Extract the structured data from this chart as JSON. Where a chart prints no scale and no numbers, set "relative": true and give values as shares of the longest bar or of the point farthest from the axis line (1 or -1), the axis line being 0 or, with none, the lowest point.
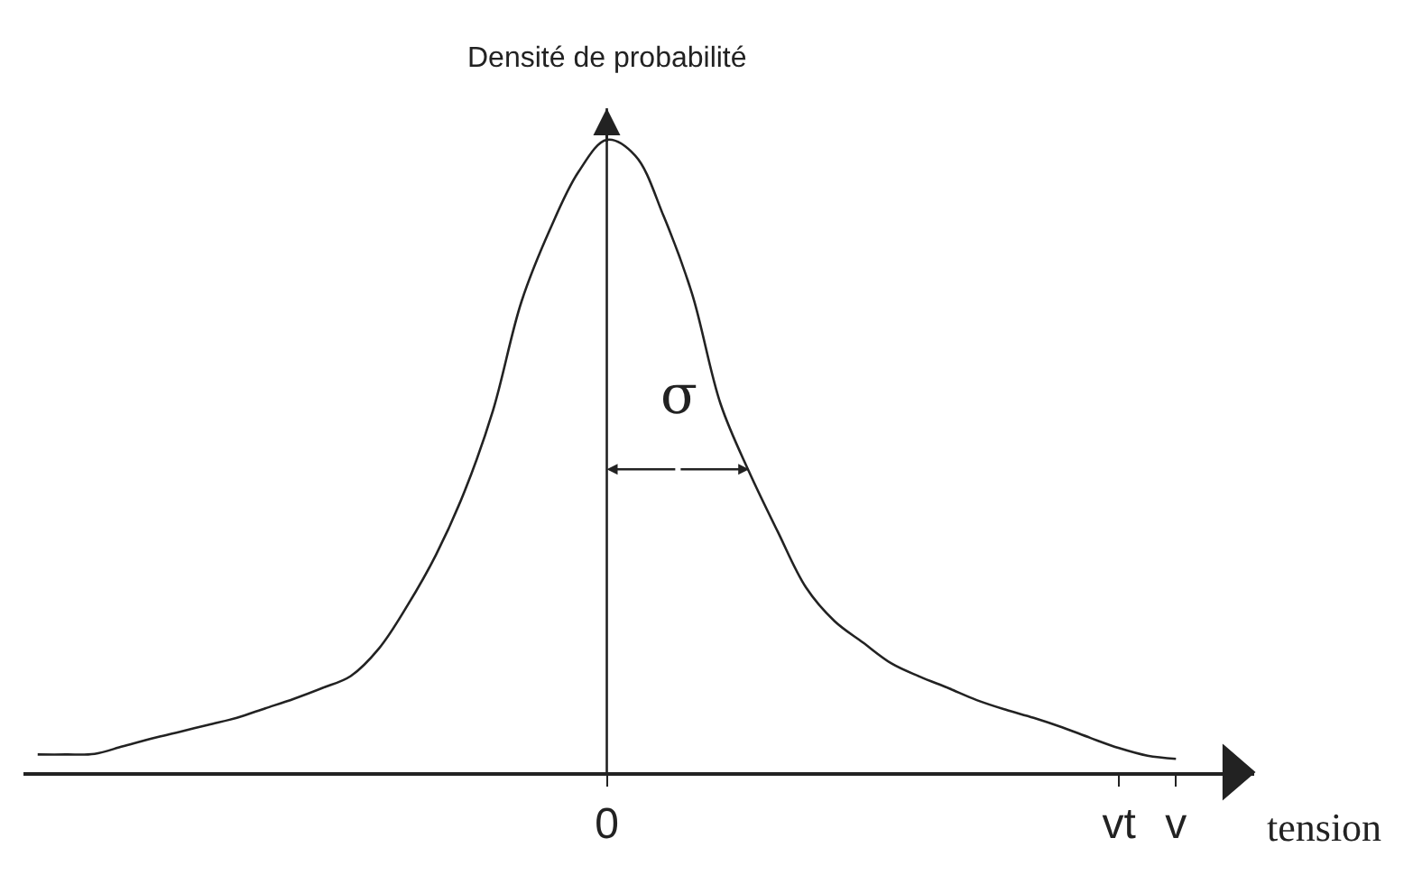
{
  "chart_data": {
    "type": "line",
    "relative": true,
    "ylabel": "Densité de probabilité",
    "xlabel": "tension",
    "categories": [
      null,
      null,
      null,
      null,
      null,
      null,
      null,
      null,
      null,
      null,
      null,
      null,
      null,
      null,
      null,
      null,
      null,
      null,
      null,
      null,
      "0",
      null,
      null,
      null,
      null,
      null,
      null,
      null,
      null,
      null,
      null,
      null,
      null,
      null,
      null,
      null,
      null,
      null,
      "vt",
      null,
      "v"
    ],
    "series": [
      {
        "color": "#222222",
        "values": [
          0.028,
          0.028,
          0.029,
          0.041,
          0.053,
          0.064,
          0.075,
          0.086,
          0.101,
          0.116,
          0.133,
          0.152,
          0.196,
          0.264,
          0.344,
          0.444,
          0.572,
          0.744,
          0.858,
          0.949,
          1,
          0.975,
          0.879,
          0.756,
          0.582,
          0.475,
          0.381,
          0.292,
          0.239,
          0.205,
          0.172,
          0.151,
          0.133,
          0.114,
          0.099,
          0.086,
          0.071,
          0.054,
          0.038,
          0.026,
          0.021
        ]
      }
    ],
    "ref_lines": [
      {
        "axis": "x",
        "value": "0"
      }
    ],
    "annotations": [
      "σ"
    ],
    "marker": "none",
    "line_style": "solid"
  }
}
